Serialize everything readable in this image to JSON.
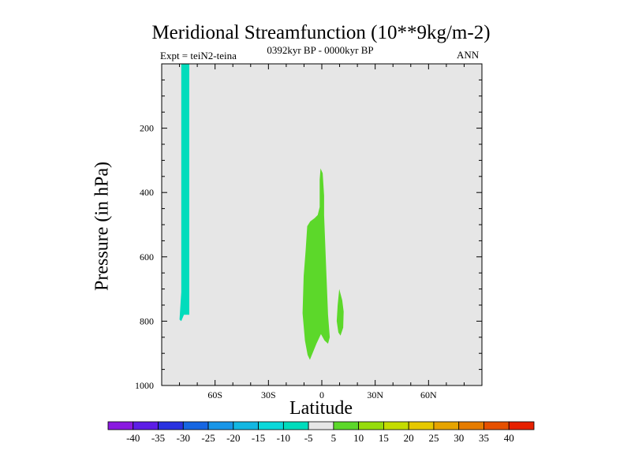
{
  "chart_data": {
    "type": "contour",
    "title": "Meridional Streamfunction (10**9kg/m-2)",
    "subtitle_left": "Expt = teiN2-teina",
    "subtitle_center": "0392kyr BP - 0000kyr BP",
    "subtitle_right": "ANN",
    "xlabel": "Latitude",
    "ylabel": "Pressure (in hPa)",
    "xlim": [
      -90,
      90
    ],
    "ylim": [
      1000,
      0
    ],
    "x_ticks": [
      {
        "value": -60,
        "label": "60S"
      },
      {
        "value": -30,
        "label": "30S"
      },
      {
        "value": 0,
        "label": "0"
      },
      {
        "value": 30,
        "label": "30N"
      },
      {
        "value": 60,
        "label": "60N"
      }
    ],
    "y_ticks": [
      {
        "value": 200,
        "label": "200"
      },
      {
        "value": 400,
        "label": "400"
      },
      {
        "value": 600,
        "label": "600"
      },
      {
        "value": 800,
        "label": "800"
      },
      {
        "value": 1000,
        "label": "1000"
      }
    ],
    "background_color": "#e6e6e6",
    "regions": [
      {
        "name": "negative-column-south",
        "level": "-10 to -5",
        "color": "#00dcbc",
        "points": [
          [
            -79,
            0
          ],
          [
            -79,
            710
          ],
          [
            -80,
            795
          ],
          [
            -79,
            800
          ],
          [
            -77.5,
            780
          ],
          [
            -74.5,
            780
          ],
          [
            -74.5,
            0
          ]
        ]
      },
      {
        "name": "positive-lobe-equator",
        "level": "5 to 10",
        "color": "#5cd82a",
        "points": [
          [
            -0.7,
            325
          ],
          [
            0.5,
            340
          ],
          [
            1.3,
            410
          ],
          [
            1.3,
            470
          ],
          [
            2.5,
            640
          ],
          [
            3.5,
            780
          ],
          [
            4.5,
            850
          ],
          [
            3.5,
            870
          ],
          [
            1.5,
            860
          ],
          [
            -0.5,
            840
          ],
          [
            -3,
            870
          ],
          [
            -6.7,
            920
          ],
          [
            -8,
            905
          ],
          [
            -9.5,
            860
          ],
          [
            -10.8,
            775
          ],
          [
            -10.2,
            660
          ],
          [
            -9.1,
            580
          ],
          [
            -8.2,
            505
          ],
          [
            -6.5,
            490
          ],
          [
            -4.1,
            480
          ],
          [
            -2.3,
            470
          ],
          [
            -1.2,
            445
          ],
          [
            -1.2,
            360
          ]
        ]
      },
      {
        "name": "positive-lobe-north",
        "level": "5 to 10",
        "color": "#5cd82a",
        "points": [
          [
            9.8,
            700
          ],
          [
            11.5,
            735
          ],
          [
            12.3,
            770
          ],
          [
            12,
            820
          ],
          [
            10.5,
            845
          ],
          [
            9.3,
            835
          ],
          [
            8.4,
            800
          ],
          [
            8.9,
            750
          ]
        ]
      }
    ],
    "colorbar": {
      "labels": [
        "-40",
        "-35",
        "-30",
        "-25",
        "-20",
        "-15",
        "-10",
        "-5",
        "5",
        "10",
        "15",
        "20",
        "25",
        "30",
        "35",
        "40"
      ],
      "colors": [
        "#8a1ae0",
        "#5d1ee6",
        "#2a32e0",
        "#1666e2",
        "#1996e8",
        "#13b7e2",
        "#0ad8da",
        "#00dcbc",
        "#e6e6e6",
        "#5cd82a",
        "#96dc0c",
        "#c4dc00",
        "#e6c800",
        "#e6a400",
        "#e67c00",
        "#e65000",
        "#e62000"
      ]
    }
  }
}
